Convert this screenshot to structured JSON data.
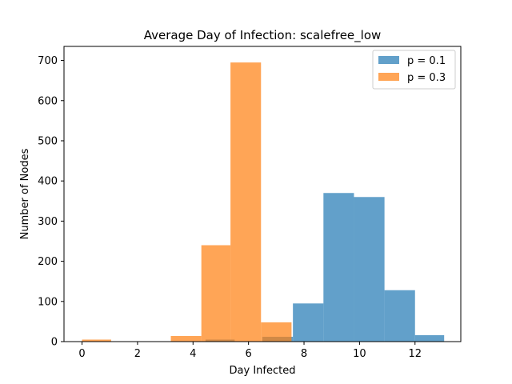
{
  "chart_data": {
    "type": "bar",
    "title": "Average Day of Infection: scalefree_low",
    "xlabel": "Day Infected",
    "ylabel": "Number of Nodes",
    "xlim": [
      -0.65,
      13.65
    ],
    "ylim": [
      0,
      735
    ],
    "xticks": [
      0,
      2,
      4,
      6,
      8,
      10,
      12
    ],
    "yticks": [
      0,
      100,
      200,
      300,
      400,
      500,
      600,
      700
    ],
    "grid": false,
    "legend_position": "top-right",
    "series": [
      {
        "name": "p = 0.1",
        "color": "#1f77b4",
        "opacity": 0.7,
        "bins": [
          {
            "x0": 4.45,
            "x1": 5.5,
            "value": 5
          },
          {
            "x0": 6.5,
            "x1": 7.6,
            "value": 12
          },
          {
            "x0": 7.6,
            "x1": 8.7,
            "value": 95
          },
          {
            "x0": 8.7,
            "x1": 9.8,
            "value": 370
          },
          {
            "x0": 9.8,
            "x1": 10.9,
            "value": 360
          },
          {
            "x0": 10.9,
            "x1": 12.0,
            "value": 128
          },
          {
            "x0": 12.0,
            "x1": 13.05,
            "value": 16
          }
        ]
      },
      {
        "name": "p = 0.3",
        "color": "#ff7f0e",
        "opacity": 0.7,
        "bins": [
          {
            "x0": 0.0,
            "x1": 1.05,
            "value": 5
          },
          {
            "x0": 3.2,
            "x1": 4.3,
            "value": 14
          },
          {
            "x0": 4.3,
            "x1": 5.35,
            "value": 240
          },
          {
            "x0": 5.35,
            "x1": 6.45,
            "value": 695
          },
          {
            "x0": 6.45,
            "x1": 7.55,
            "value": 48
          }
        ]
      }
    ]
  }
}
